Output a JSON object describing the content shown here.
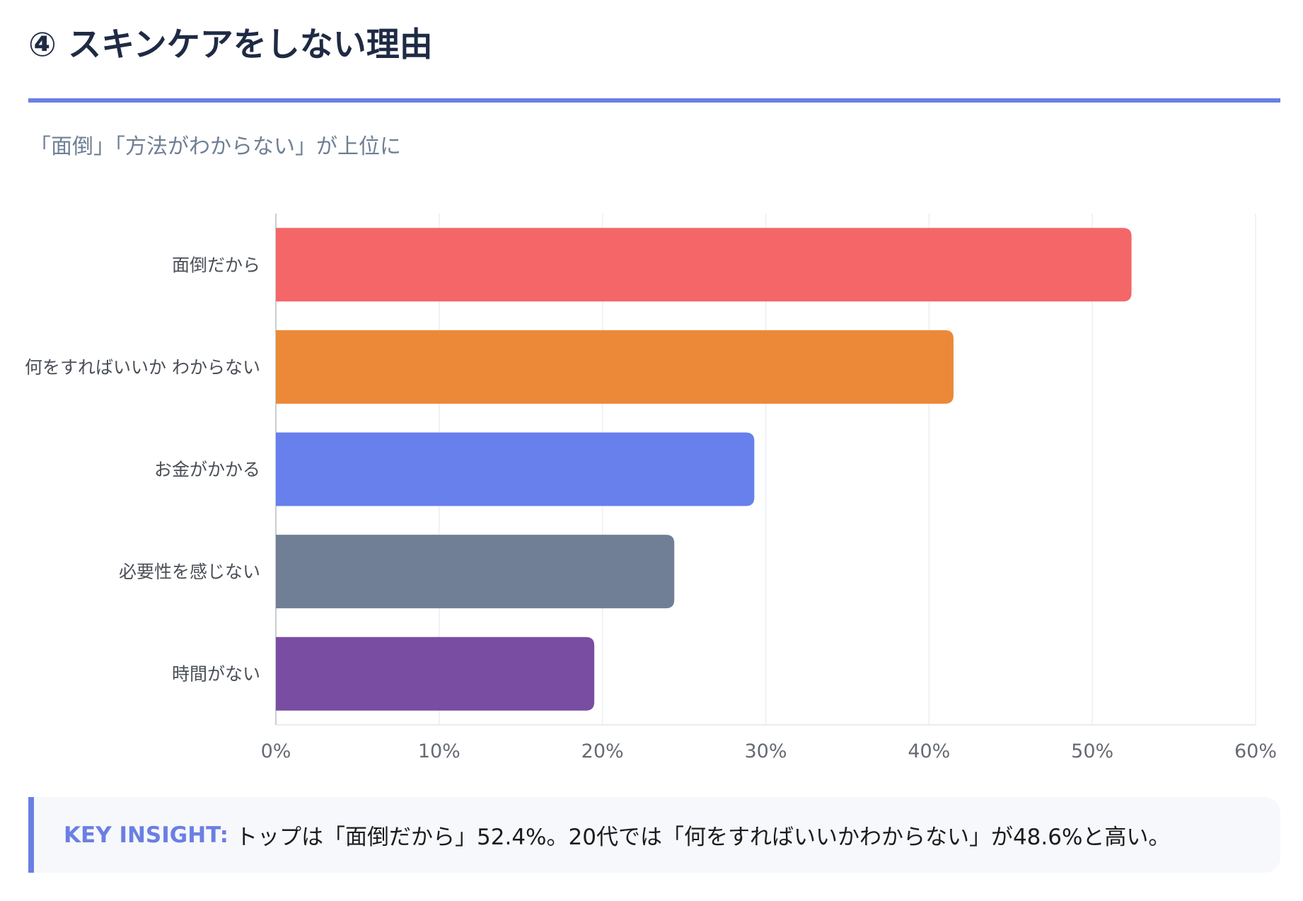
{
  "header": {
    "title": "④ スキンケアをしない理由",
    "subtitle": "「面倒」「方法がわからない」が上位に"
  },
  "chart_data": {
    "type": "bar",
    "orientation": "horizontal",
    "categories": [
      "面倒だから",
      "何をすればいいか わからない",
      "お金がかかる",
      "必要性を感じない",
      "時間がない"
    ],
    "values": [
      52.4,
      41.5,
      29.3,
      24.4,
      19.5
    ],
    "colors": [
      "#f46668",
      "#ec8938",
      "#6780ec",
      "#717f96",
      "#784da2"
    ],
    "xlim": [
      0,
      60
    ],
    "xticks": [
      "0%",
      "10%",
      "20%",
      "30%",
      "40%",
      "50%",
      "60%"
    ],
    "unit": "%",
    "grid": true,
    "legend": "none"
  },
  "insight": {
    "label": "KEY INSIGHT:",
    "text": "トップは「面倒だから」52.4%。20代では「何をすればいいかわからない」が48.6%と高い。"
  },
  "theme": {
    "accent": "#6b7fe3"
  }
}
